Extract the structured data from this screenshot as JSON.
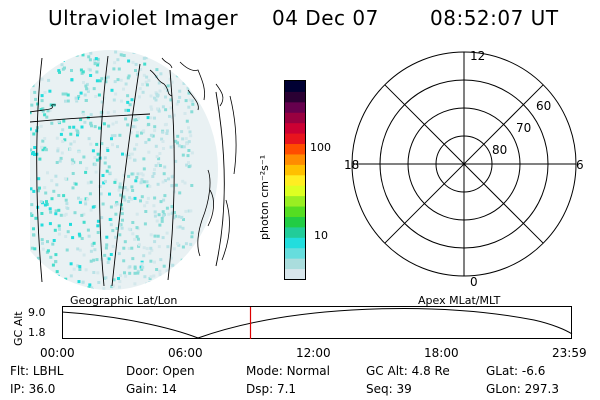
{
  "header": {
    "instrument": "Ultraviolet Imager",
    "date": "04 Dec 07",
    "time": "08:52:07 UT"
  },
  "colorbar": {
    "unit_label": "photon cm⁻²s⁻¹",
    "ticks": [
      "100",
      "10"
    ],
    "colors": [
      "#000033",
      "#2a0033",
      "#66004d",
      "#990040",
      "#cc0033",
      "#e8141e",
      "#ff4d00",
      "#ff8c00",
      "#ffc000",
      "#ffee22",
      "#ddff22",
      "#99ee22",
      "#55dd22",
      "#22cc44",
      "#22cc99",
      "#22dddd",
      "#66dddd",
      "#aadddd",
      "#d8e6ec"
    ]
  },
  "polar": {
    "labels": {
      "noon": "12",
      "midnight": "0",
      "dusk": "18",
      "dawn": "6"
    },
    "lat_labels": [
      "60",
      "70",
      "80"
    ]
  },
  "orbit": {
    "left_label": "Geographic Lat/Lon",
    "right_label": "Apex MLat/MLT",
    "axis_label": "GC Alt",
    "y_ticks": [
      "9.0",
      "1.8"
    ],
    "time_ticks": [
      "00:00",
      "06:00",
      "12:00",
      "18:00",
      "23:59"
    ],
    "marker_color": "#dd0000",
    "marker_time_hours": 8.87
  },
  "footer": {
    "row1": [
      {
        "label": "Flt:",
        "value": "LBHL"
      },
      {
        "label": "Door:",
        "value": "Open"
      },
      {
        "label": "Mode:",
        "value": "Normal"
      },
      {
        "label": "GC Alt:",
        "value": "4.8 Re"
      },
      {
        "label": "GLat:",
        "value": "-6.6"
      }
    ],
    "row2": [
      {
        "label": "IP:",
        "value": "36.0"
      },
      {
        "label": "Gain:",
        "value": "14"
      },
      {
        "label": "Dsp:",
        "value": "7.1"
      },
      {
        "label": "Seq:",
        "value": "39"
      },
      {
        "label": "GLon:",
        "value": "297.3"
      }
    ]
  }
}
